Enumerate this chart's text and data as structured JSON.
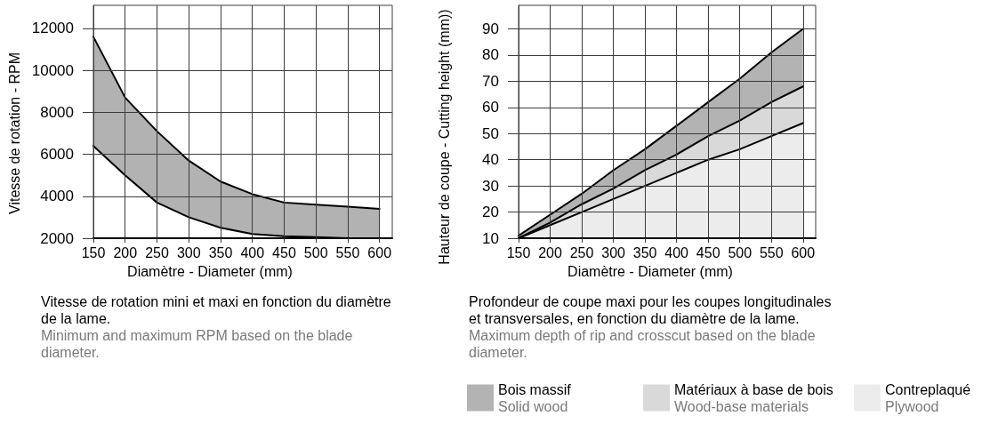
{
  "chart_data": [
    {
      "type": "line",
      "xlabel": "Diamètre - Diameter (mm)",
      "ylabel": "Vitesse de rotation - RPM",
      "annotations": [
        "Vitesse de rotation mini et maxi en fonction du diamètre de la lame.",
        "Minimum and maximum RPM based on the blade diameter."
      ],
      "x": [
        150,
        200,
        250,
        300,
        350,
        400,
        450,
        500,
        550,
        600
      ],
      "series": [
        {
          "color": "#000000",
          "values": [
            6400,
            5000,
            3700,
            3000,
            2500,
            2200,
            2100,
            2050,
            2000,
            2000
          ]
        },
        {
          "color": "#000000",
          "values": [
            11600,
            8700,
            7100,
            5700,
            4700,
            4100,
            3700,
            3600,
            3500,
            3400
          ],
          "lower": [
            6400,
            5000,
            3700,
            3000,
            2500,
            2200,
            2100,
            2050,
            2000,
            2000
          ],
          "upper": [
            11600,
            8700,
            7100,
            5700,
            4700,
            4100,
            3700,
            3600,
            3500,
            3400
          ]
        }
      ],
      "xlim": [
        150,
        620
      ],
      "xticks": [
        150,
        200,
        250,
        300,
        350,
        400,
        450,
        500,
        550,
        600
      ],
      "ylim": [
        2000,
        13100
      ],
      "yticks": [
        2000,
        4000,
        6000,
        8000,
        10000,
        12000
      ],
      "grid": true
    },
    {
      "type": "area",
      "xlabel": "Diamètre - Diameter (mm)",
      "ylabel": "Hauteur de coupe - Cutting height (mm))",
      "annotations": [
        "Profondeur de coupe maxi pour les coupes longitudinales et transversales, en fonction du diamètre de la lame.",
        "Maximum depth of rip and crosscut based on the blade diameter."
      ],
      "x": [
        150,
        200,
        250,
        300,
        350,
        400,
        450,
        500,
        550,
        600
      ],
      "series": [
        {
          "name": "Bois massif\nSolid wood",
          "color": "#b3b3b3",
          "values": [
            11,
            19,
            27,
            36,
            44,
            53,
            62,
            71,
            81,
            90
          ]
        },
        {
          "name": "Matériaux à base de bois\nWood-base materials",
          "color": "#d9d9d9",
          "values": [
            10,
            16,
            23,
            29,
            36,
            42,
            49,
            55,
            62,
            68
          ]
        },
        {
          "name": "Contreplaqué\nPlywood",
          "color": "#ececec",
          "values": [
            10,
            15,
            20,
            25,
            30,
            35,
            40,
            44,
            49,
            54
          ]
        }
      ],
      "xlim": [
        150,
        620
      ],
      "xticks": [
        150,
        200,
        250,
        300,
        350,
        400,
        450,
        500,
        550,
        600
      ],
      "ylim": [
        10,
        99
      ],
      "yticks": [
        10,
        20,
        30,
        40,
        50,
        60,
        70,
        80,
        90
      ],
      "grid": true,
      "legend": "bottom"
    }
  ]
}
